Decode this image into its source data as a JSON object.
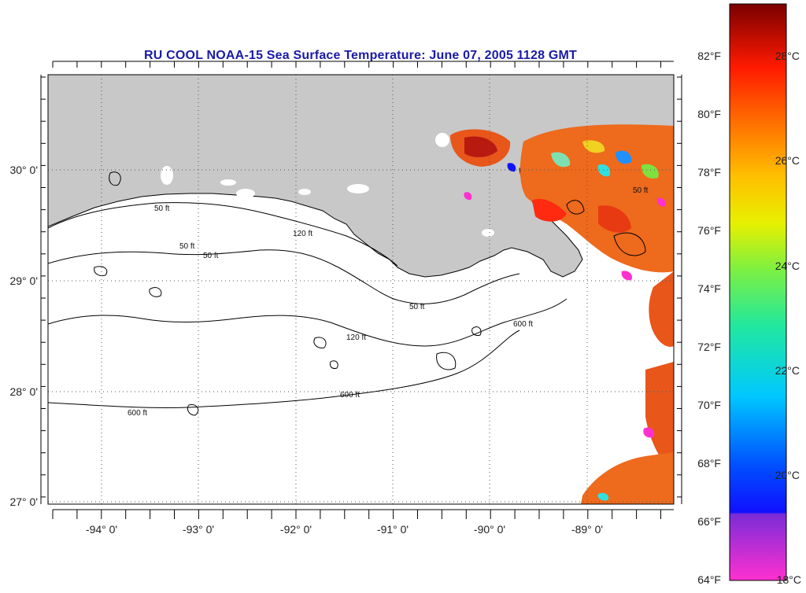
{
  "title": "RU COOL  NOAA-15  Sea Surface Temperature:  June 07, 2005 1128 GMT",
  "longitude_labels": [
    "-94° 0'",
    "-93° 0'",
    "-92° 0'",
    "-91° 0'",
    "-90° 0'",
    "-89° 0'"
  ],
  "latitude_labels": [
    "30° 0'",
    "29° 0'",
    "28° 0'",
    "27° 0'"
  ],
  "contour_labels": [
    "50 ft",
    "120 ft",
    "600 ft"
  ],
  "colorbar": {
    "fahrenheit_labels": [
      "64°F",
      "66°F",
      "68°F",
      "70°F",
      "72°F",
      "74°F",
      "76°F",
      "78°F",
      "80°F",
      "82°F"
    ],
    "celsius_labels": [
      "18°C",
      "20°C",
      "22°C",
      "24°C",
      "26°C",
      "28°C"
    ]
  },
  "colors": {
    "title": "#1a1aa8",
    "land": "#c8c8c8",
    "ocean": "#ffffff",
    "sst_warm": "#e84a10",
    "sst_hot": "#b81a10"
  }
}
